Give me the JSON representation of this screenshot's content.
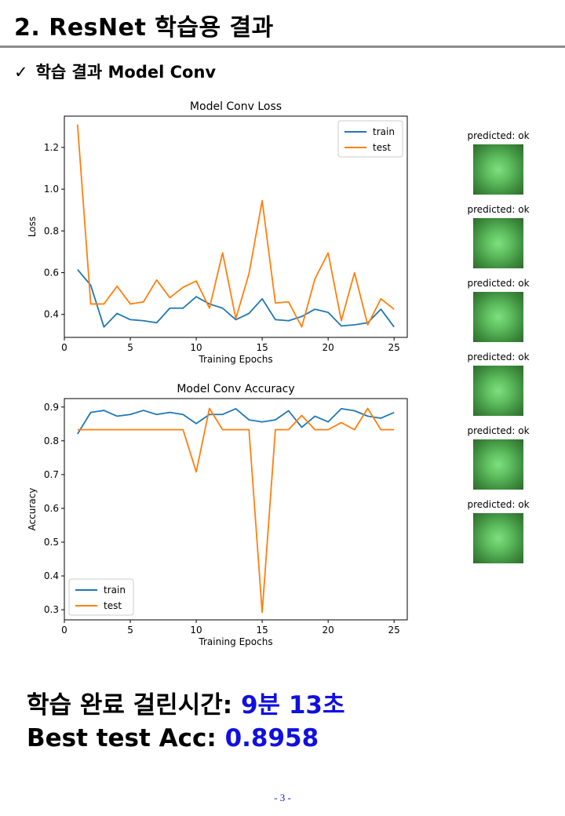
{
  "header": {
    "title": "2. ResNet 학습용 결과"
  },
  "section": {
    "check_icon": "✓",
    "subtitle": "학습 결과 Model Conv"
  },
  "colors": {
    "train": "#1f77b4",
    "test": "#ff7f0e",
    "highlight": "#1010e0"
  },
  "chart_data": [
    {
      "type": "line",
      "title": "Model Conv Loss",
      "xlabel": "Training Epochs",
      "ylabel": "Loss",
      "xlim": [
        0,
        26
      ],
      "ylim": [
        0.29,
        1.35
      ],
      "xticks": [
        0,
        5,
        10,
        15,
        20,
        25
      ],
      "yticks": [
        0.4,
        0.6,
        0.8,
        1.0,
        1.2
      ],
      "legend": "top-right",
      "x": [
        1,
        2,
        3,
        4,
        5,
        6,
        7,
        8,
        9,
        10,
        11,
        12,
        13,
        14,
        15,
        16,
        17,
        18,
        19,
        20,
        21,
        22,
        23,
        24,
        25
      ],
      "series": [
        {
          "name": "train",
          "values": [
            0.615,
            0.54,
            0.34,
            0.405,
            0.375,
            0.37,
            0.36,
            0.43,
            0.43,
            0.485,
            0.45,
            0.43,
            0.375,
            0.405,
            0.475,
            0.375,
            0.37,
            0.39,
            0.425,
            0.41,
            0.345,
            0.35,
            0.36,
            0.425,
            0.34
          ]
        },
        {
          "name": "test",
          "values": [
            1.31,
            0.45,
            0.45,
            0.535,
            0.45,
            0.46,
            0.565,
            0.48,
            0.53,
            0.56,
            0.43,
            0.695,
            0.38,
            0.595,
            0.945,
            0.455,
            0.46,
            0.34,
            0.57,
            0.695,
            0.37,
            0.6,
            0.35,
            0.475,
            0.425
          ]
        }
      ]
    },
    {
      "type": "line",
      "title": "Model Conv Accuracy",
      "xlabel": "Training Epochs",
      "ylabel": "Accuracy",
      "xlim": [
        0,
        26
      ],
      "ylim": [
        0.27,
        0.925
      ],
      "xticks": [
        0,
        5,
        10,
        15,
        20,
        25
      ],
      "yticks": [
        0.3,
        0.4,
        0.5,
        0.6,
        0.7,
        0.8,
        0.9
      ],
      "legend": "bottom-left",
      "x": [
        1,
        2,
        3,
        4,
        5,
        6,
        7,
        8,
        9,
        10,
        11,
        12,
        13,
        14,
        15,
        16,
        17,
        18,
        19,
        20,
        21,
        22,
        23,
        24,
        25
      ],
      "series": [
        {
          "name": "train",
          "values": [
            0.82,
            0.884,
            0.89,
            0.873,
            0.878,
            0.89,
            0.878,
            0.884,
            0.878,
            0.851,
            0.878,
            0.878,
            0.895,
            0.862,
            0.856,
            0.862,
            0.889,
            0.84,
            0.873,
            0.856,
            0.895,
            0.889,
            0.873,
            0.867,
            0.884
          ]
        },
        {
          "name": "test",
          "values": [
            0.833,
            0.833,
            0.833,
            0.833,
            0.833,
            0.833,
            0.833,
            0.833,
            0.833,
            0.708,
            0.896,
            0.833,
            0.833,
            0.833,
            0.292,
            0.833,
            0.833,
            0.875,
            0.833,
            0.833,
            0.854,
            0.833,
            0.896,
            0.833,
            0.833
          ]
        }
      ]
    }
  ],
  "predictions": [
    {
      "label": "predicted: ok"
    },
    {
      "label": "predicted: ok"
    },
    {
      "label": "predicted: ok"
    },
    {
      "label": "predicted: ok"
    },
    {
      "label": "predicted: ok"
    },
    {
      "label": "predicted: ok"
    }
  ],
  "summary": {
    "time_label": "학습 완료 걸린시간: ",
    "time_value": "9분 13초",
    "acc_label": "Best test Acc: ",
    "acc_value": "0.8958"
  },
  "footer": {
    "page": "- 3 -"
  }
}
